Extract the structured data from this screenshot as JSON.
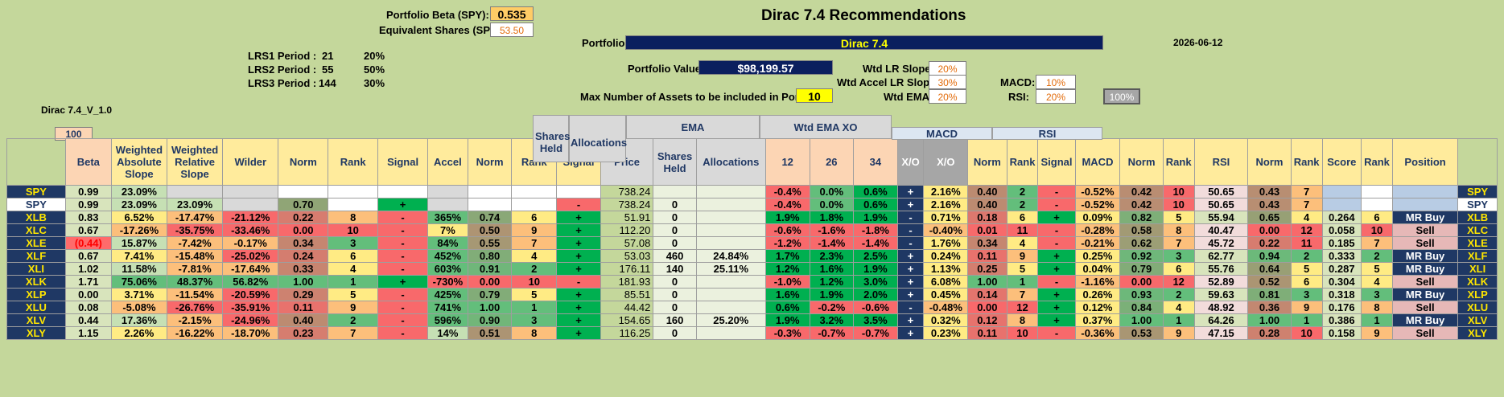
{
  "top": {
    "portfolio_beta_label": "Portfolio Beta (SPY):",
    "portfolio_beta_value": "0.535",
    "equiv_shares_label": "Equivalent Shares (SPY):",
    "equiv_shares_value": "53.50",
    "lrs": [
      {
        "label": "LRS1 Period :",
        "period": "21",
        "weight": "20%"
      },
      {
        "label": "LRS2 Period :",
        "period": "55",
        "weight": "50%"
      },
      {
        "label": "LRS3 Period :",
        "period": "144",
        "weight": "30%"
      }
    ],
    "version": "Dirac 7.4_V_1.0",
    "title": "Dirac 7.4 Recommendations",
    "portfolio_label": "Portfolio:",
    "portfolio_name": "Dirac 7.4",
    "date": "2026-06-12",
    "portfolio_value_label": "Portfolio Value:",
    "portfolio_value": "$98,199.57",
    "max_assets_label": "Max Number of Assets to be included in Portfolio:",
    "max_assets_value": "10",
    "weights": {
      "wtd_lr_slope_label": "Wtd LR Slope:",
      "wtd_lr_slope": "20%",
      "wtd_accel_label": "Wtd Accel LR Slope:",
      "wtd_accel": "30%",
      "wtd_ema_label": "Wtd EMA:",
      "wtd_ema": "20%",
      "macd_label": "MACD:",
      "macd": "10%",
      "rsi_label": "RSI:",
      "rsi": "20%",
      "total": "100%"
    }
  },
  "headers": {
    "beta_top": "100",
    "beta": "Beta",
    "weighted_absolute_slope": "Weighted Absolute Slope",
    "weighted_relative_slope": "Weighted Relative Slope",
    "wilder": "Wilder",
    "norm": "Norm",
    "rank": "Rank",
    "signal": "Signal",
    "accel": "Accel",
    "price": "Price",
    "shares_held": "Shares Held",
    "allocations": "Allocations",
    "ema": "EMA",
    "ema12": "12",
    "ema26": "26",
    "ema34": "34",
    "xo": "X/O",
    "wtd_ema_xo": "Wtd EMA XO",
    "macd": "MACD",
    "rsi": "RSI",
    "score": "Score",
    "position": "Position"
  },
  "rows": [
    {
      "t": "SPY",
      "beta": "0.99",
      "was": "23.09%",
      "wrs": "",
      "wilder": "",
      "norm": "",
      "rank": "",
      "signal": "",
      "accel": "",
      "anorm": "",
      "arank": "",
      "asig": "",
      "price": "738.24",
      "shares": "",
      "alloc": "",
      "e12": "-0.4%",
      "e26": "0.0%",
      "e34": "0.6%",
      "xo": "+",
      "wxo": "2.16%",
      "wnorm": "0.40",
      "wrank": "2",
      "wsig": "-",
      "macd": "-0.52%",
      "mnorm": "0.42",
      "mrank": "10",
      "rsi": "50.65",
      "rnorm": "0.43",
      "rrank": "7",
      "score": "",
      "srank": "",
      "pos": ""
    },
    {
      "t": "SPY",
      "beta": "0.99",
      "was": "23.09%",
      "wrs": "23.09%",
      "wilder": "",
      "norm": "0.70",
      "rank": "",
      "signal": "+",
      "accel": "",
      "anorm": "",
      "arank": "",
      "asig": "-",
      "price": "738.24",
      "shares": "0",
      "alloc": "",
      "e12": "-0.4%",
      "e26": "0.0%",
      "e34": "0.6%",
      "xo": "+",
      "wxo": "2.16%",
      "wnorm": "0.40",
      "wrank": "2",
      "wsig": "-",
      "macd": "-0.52%",
      "mnorm": "0.42",
      "mrank": "10",
      "rsi": "50.65",
      "rnorm": "0.43",
      "rrank": "7",
      "score": "",
      "srank": "",
      "pos": ""
    },
    {
      "t": "XLB",
      "beta": "0.83",
      "was": "6.52%",
      "wrs": "-17.47%",
      "wilder": "-21.12%",
      "norm": "0.22",
      "rank": "8",
      "signal": "-",
      "accel": "365%",
      "anorm": "0.74",
      "arank": "6",
      "asig": "+",
      "price": "51.91",
      "shares": "0",
      "alloc": "",
      "e12": "1.9%",
      "e26": "1.8%",
      "e34": "1.9%",
      "xo": "-",
      "wxo": "0.71%",
      "wnorm": "0.18",
      "wrank": "6",
      "wsig": "+",
      "macd": "0.09%",
      "mnorm": "0.82",
      "mrank": "5",
      "rsi": "55.94",
      "rnorm": "0.65",
      "rrank": "4",
      "score": "0.264",
      "srank": "6",
      "pos": "MR Buy"
    },
    {
      "t": "XLC",
      "beta": "0.67",
      "was": "-17.26%",
      "wrs": "-35.75%",
      "wilder": "-33.46%",
      "norm": "0.00",
      "rank": "10",
      "signal": "-",
      "accel": "7%",
      "anorm": "0.50",
      "arank": "9",
      "asig": "+",
      "price": "112.20",
      "shares": "0",
      "alloc": "",
      "e12": "-0.6%",
      "e26": "-1.6%",
      "e34": "-1.8%",
      "xo": "-",
      "wxo": "-0.40%",
      "wnorm": "0.01",
      "wrank": "11",
      "wsig": "-",
      "macd": "-0.28%",
      "mnorm": "0.58",
      "mrank": "8",
      "rsi": "40.47",
      "rnorm": "0.00",
      "rrank": "12",
      "score": "0.058",
      "srank": "10",
      "pos": "Sell"
    },
    {
      "t": "XLE",
      "beta": "(0.44)",
      "was": "15.87%",
      "wrs": "-7.42%",
      "wilder": "-0.17%",
      "norm": "0.34",
      "rank": "3",
      "signal": "-",
      "accel": "84%",
      "anorm": "0.55",
      "arank": "7",
      "asig": "+",
      "price": "57.08",
      "shares": "0",
      "alloc": "",
      "e12": "-1.2%",
      "e26": "-1.4%",
      "e34": "-1.4%",
      "xo": "-",
      "wxo": "1.76%",
      "wnorm": "0.34",
      "wrank": "4",
      "wsig": "-",
      "macd": "-0.21%",
      "mnorm": "0.62",
      "mrank": "7",
      "rsi": "45.72",
      "rnorm": "0.22",
      "rrank": "11",
      "score": "0.185",
      "srank": "7",
      "pos": "Sell"
    },
    {
      "t": "XLF",
      "beta": "0.67",
      "was": "7.41%",
      "wrs": "-15.48%",
      "wilder": "-25.02%",
      "norm": "0.24",
      "rank": "6",
      "signal": "-",
      "accel": "452%",
      "anorm": "0.80",
      "arank": "4",
      "asig": "+",
      "price": "53.03",
      "shares": "460",
      "alloc": "24.84%",
      "e12": "1.7%",
      "e26": "2.3%",
      "e34": "2.5%",
      "xo": "+",
      "wxo": "0.24%",
      "wnorm": "0.11",
      "wrank": "9",
      "wsig": "+",
      "macd": "0.25%",
      "mnorm": "0.92",
      "mrank": "3",
      "rsi": "62.77",
      "rnorm": "0.94",
      "rrank": "2",
      "score": "0.333",
      "srank": "2",
      "pos": "MR Buy"
    },
    {
      "t": "XLI",
      "beta": "1.02",
      "was": "11.58%",
      "wrs": "-7.81%",
      "wilder": "-17.64%",
      "norm": "0.33",
      "rank": "4",
      "signal": "-",
      "accel": "603%",
      "anorm": "0.91",
      "arank": "2",
      "asig": "+",
      "price": "176.11",
      "shares": "140",
      "alloc": "25.11%",
      "e12": "1.2%",
      "e26": "1.6%",
      "e34": "1.9%",
      "xo": "+",
      "wxo": "1.13%",
      "wnorm": "0.25",
      "wrank": "5",
      "wsig": "+",
      "macd": "0.04%",
      "mnorm": "0.79",
      "mrank": "6",
      "rsi": "55.76",
      "rnorm": "0.64",
      "rrank": "5",
      "score": "0.287",
      "srank": "5",
      "pos": "MR Buy"
    },
    {
      "t": "XLK",
      "beta": "1.71",
      "was": "75.06%",
      "wrs": "48.37%",
      "wilder": "56.82%",
      "norm": "1.00",
      "rank": "1",
      "signal": "+",
      "accel": "-730%",
      "anorm": "0.00",
      "arank": "10",
      "asig": "-",
      "price": "181.93",
      "shares": "0",
      "alloc": "",
      "e12": "-1.0%",
      "e26": "1.2%",
      "e34": "3.0%",
      "xo": "+",
      "wxo": "6.08%",
      "wnorm": "1.00",
      "wrank": "1",
      "wsig": "-",
      "macd": "-1.16%",
      "mnorm": "0.00",
      "mrank": "12",
      "rsi": "52.89",
      "rnorm": "0.52",
      "rrank": "6",
      "score": "0.304",
      "srank": "4",
      "pos": "Sell"
    },
    {
      "t": "XLP",
      "beta": "0.00",
      "was": "3.71%",
      "wrs": "-11.54%",
      "wilder": "-20.59%",
      "norm": "0.29",
      "rank": "5",
      "signal": "-",
      "accel": "425%",
      "anorm": "0.79",
      "arank": "5",
      "asig": "+",
      "price": "85.51",
      "shares": "0",
      "alloc": "",
      "e12": "1.6%",
      "e26": "1.9%",
      "e34": "2.0%",
      "xo": "+",
      "wxo": "0.45%",
      "wnorm": "0.14",
      "wrank": "7",
      "wsig": "+",
      "macd": "0.26%",
      "mnorm": "0.93",
      "mrank": "2",
      "rsi": "59.63",
      "rnorm": "0.81",
      "rrank": "3",
      "score": "0.318",
      "srank": "3",
      "pos": "MR Buy"
    },
    {
      "t": "XLU",
      "beta": "0.08",
      "was": "-5.08%",
      "wrs": "-26.76%",
      "wilder": "-35.91%",
      "norm": "0.11",
      "rank": "9",
      "signal": "-",
      "accel": "741%",
      "anorm": "1.00",
      "arank": "1",
      "asig": "+",
      "price": "44.42",
      "shares": "0",
      "alloc": "",
      "e12": "0.6%",
      "e26": "-0.2%",
      "e34": "-0.6%",
      "xo": "-",
      "wxo": "-0.48%",
      "wnorm": "0.00",
      "wrank": "12",
      "wsig": "+",
      "macd": "0.12%",
      "mnorm": "0.84",
      "mrank": "4",
      "rsi": "48.92",
      "rnorm": "0.36",
      "rrank": "9",
      "score": "0.176",
      "srank": "8",
      "pos": "Sell"
    },
    {
      "t": "XLV",
      "beta": "0.44",
      "was": "17.36%",
      "wrs": "-2.15%",
      "wilder": "-24.96%",
      "norm": "0.40",
      "rank": "2",
      "signal": "-",
      "accel": "596%",
      "anorm": "0.90",
      "arank": "3",
      "asig": "+",
      "price": "154.65",
      "shares": "160",
      "alloc": "25.20%",
      "e12": "1.9%",
      "e26": "3.2%",
      "e34": "3.5%",
      "xo": "+",
      "wxo": "0.32%",
      "wnorm": "0.12",
      "wrank": "8",
      "wsig": "+",
      "macd": "0.37%",
      "mnorm": "1.00",
      "mrank": "1",
      "rsi": "64.26",
      "rnorm": "1.00",
      "rrank": "1",
      "score": "0.386",
      "srank": "1",
      "pos": "MR Buy"
    },
    {
      "t": "XLY",
      "beta": "1.15",
      "was": "2.26%",
      "wrs": "-16.22%",
      "wilder": "-18.70%",
      "norm": "0.23",
      "rank": "7",
      "signal": "-",
      "accel": "14%",
      "anorm": "0.51",
      "arank": "8",
      "asig": "+",
      "price": "116.25",
      "shares": "0",
      "alloc": "",
      "e12": "-0.3%",
      "e26": "-0.7%",
      "e34": "-0.7%",
      "xo": "+",
      "wxo": "0.23%",
      "wnorm": "0.11",
      "wrank": "10",
      "wsig": "-",
      "macd": "-0.36%",
      "mnorm": "0.53",
      "mrank": "9",
      "rsi": "47.15",
      "rnorm": "0.28",
      "rrank": "10",
      "score": "0.158",
      "srank": "9",
      "pos": "Sell"
    }
  ],
  "colors": {
    "navy": "#0b1f5e",
    "yellow": "#ffff00",
    "green": "#00b050",
    "red": "#f8696b",
    "orange": "#fcd5b4"
  }
}
